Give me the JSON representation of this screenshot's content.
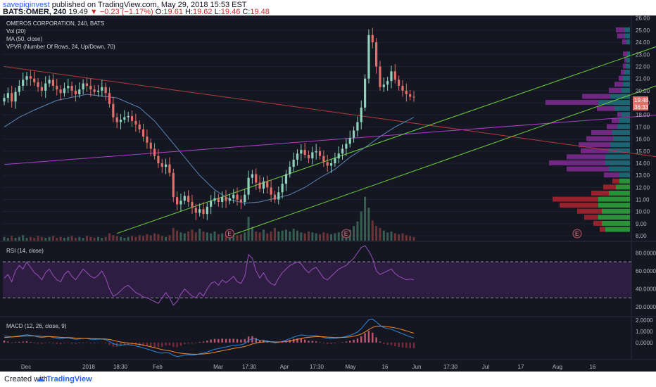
{
  "header": {
    "user": "savepiginvest",
    "published_text": " published on TradingView.com, May 29, 2018 15:53 EST",
    "symbol": "BATS:OMER, 240",
    "last": "19.49",
    "change": "−0.23 (−1.17%)",
    "o_label": "O:",
    "o_value": "19.61",
    "h_label": "H:",
    "h_value": "19.62",
    "l_label": "L:",
    "l_value": "19.46",
    "c_label": "C:",
    "c_value": "19.48"
  },
  "legend": {
    "title": "OMEROS CORPORATION, 240, BATS",
    "vol": "Vol (20)",
    "ma": "MA (50, close)",
    "vpvr": "VPVR (Number Of Rows, 24, Up/Down, 70)",
    "rsi": "RSI (14, close)",
    "macd": "MACD (12, 26, close, 9)"
  },
  "price_labels": {
    "current": "19.48",
    "timer": "36:33"
  },
  "earnings_marker": "E",
  "footer": {
    "created_with": "Created with",
    "brand": "TradingView"
  },
  "colors": {
    "background": "#141722",
    "candle_up": "#8fd1ba",
    "candle_down": "#e0706a",
    "ma": "#5b86b8",
    "rsi": "#9b4fbd",
    "macd": "#2e87d8",
    "signal": "#f28b2c",
    "channel": "#6fcf3a",
    "trend_red": "#b73a3a",
    "trend_purple": "#b13ec7"
  },
  "chart_data": [
    {
      "type": "candlestick",
      "title": "OMEROS CORPORATION, 240, BATS",
      "x_ticks": [
        "Dec",
        "2018",
        "18:30",
        "Feb",
        "Mar",
        "17:30",
        "Apr",
        "17:30",
        "May",
        "16",
        "Jun",
        "17:30",
        "Jul",
        "17",
        "Aug",
        "16"
      ],
      "y_ticks": [
        8.0,
        9.0,
        10.0,
        11.0,
        12.0,
        13.0,
        14.0,
        15.0,
        16.0,
        17.0,
        18.0,
        19.0,
        20.0,
        21.0,
        22.0,
        23.0,
        24.0,
        25.0,
        26.0
      ],
      "ylim": [
        7.6,
        26.1
      ],
      "close": [
        19.4,
        19.8,
        19.1,
        19.9,
        20.4,
        20.9,
        21.2,
        21.0,
        20.7,
        20.3,
        20.0,
        20.6,
        20.9,
        20.4,
        20.1,
        19.8,
        20.2,
        20.4,
        20.0,
        19.7,
        20.1,
        20.6,
        20.4,
        20.1,
        19.9,
        20.0,
        20.3,
        19.8,
        18.9,
        17.8,
        17.4,
        17.6,
        17.8,
        17.9,
        17.5,
        17.2,
        16.8,
        16.2,
        15.7,
        15.2,
        14.6,
        14.0,
        13.7,
        13.9,
        13.2,
        11.2,
        10.6,
        10.9,
        11.3,
        10.8,
        10.3,
        9.9,
        10.2,
        9.8,
        10.4,
        10.9,
        11.1,
        10.8,
        11.2,
        10.9,
        11.1,
        11.4,
        11.0,
        10.8,
        11.4,
        12.8,
        13.1,
        12.4,
        11.9,
        12.5,
        12.0,
        11.4,
        11.0,
        11.6,
        12.3,
        13.1,
        13.7,
        14.3,
        14.8,
        15.1,
        14.7,
        14.4,
        14.9,
        15.0,
        14.6,
        14.1,
        13.8,
        14.0,
        14.4,
        14.8,
        15.2,
        15.6,
        16.1,
        16.7,
        17.4,
        18.6,
        21.0,
        24.6,
        24.0,
        22.0,
        20.3,
        20.5,
        20.8,
        21.6,
        20.9,
        20.4,
        20.0,
        19.7,
        19.5,
        19.48
      ],
      "volume": [
        0.4,
        0.3,
        0.5,
        0.3,
        0.4,
        0.6,
        0.3,
        0.4,
        0.3,
        0.5,
        0.4,
        0.3,
        0.4,
        0.5,
        0.3,
        0.4,
        0.3,
        0.4,
        0.5,
        0.3,
        0.4,
        0.3,
        0.5,
        0.4,
        0.3,
        0.4,
        0.3,
        0.4,
        0.8,
        0.6,
        0.5,
        0.4,
        0.3,
        0.4,
        0.5,
        0.4,
        0.6,
        0.5,
        0.7,
        0.6,
        0.8,
        0.7,
        0.5,
        0.4,
        0.6,
        1.4,
        1.1,
        0.9,
        0.8,
        1.0,
        1.2,
        0.9,
        1.3,
        1.0,
        0.9,
        0.8,
        1.0,
        0.7,
        0.8,
        0.6,
        0.7,
        0.8,
        0.6,
        0.7,
        0.9,
        2.6,
        1.5,
        1.0,
        0.9,
        1.2,
        0.8,
        1.0,
        1.4,
        1.0,
        1.1,
        1.2,
        1.0,
        1.3,
        1.1,
        0.9,
        0.8,
        1.0,
        0.9,
        0.8,
        0.7,
        0.9,
        0.8,
        0.7,
        0.8,
        0.9,
        1.0,
        1.1,
        1.2,
        1.6,
        2.1,
        3.2,
        4.8,
        3.6,
        2.2,
        1.6,
        1.4,
        1.1,
        0.9,
        1.0,
        0.8,
        0.7,
        0.8,
        0.6,
        0.5,
        0.4
      ],
      "ma50_points": [
        [
          0,
          17.0
        ],
        [
          4,
          17.8
        ],
        [
          8,
          18.4
        ],
        [
          14,
          19.2
        ],
        [
          22,
          19.7
        ],
        [
          30,
          19.4
        ],
        [
          36,
          18.6
        ],
        [
          40,
          17.5
        ],
        [
          44,
          16.0
        ],
        [
          48,
          14.5
        ],
        [
          52,
          13.0
        ],
        [
          56,
          11.8
        ],
        [
          60,
          11.0
        ],
        [
          64,
          10.7
        ],
        [
          68,
          10.8
        ],
        [
          72,
          11.1
        ],
        [
          76,
          11.4
        ],
        [
          80,
          12.0
        ],
        [
          84,
          12.8
        ],
        [
          88,
          13.5
        ],
        [
          92,
          14.5
        ],
        [
          96,
          15.3
        ],
        [
          100,
          16.2
        ],
        [
          104,
          17.0
        ],
        [
          109,
          17.8
        ]
      ],
      "earnings_index": [
        60,
        91
      ],
      "vpvr_rows": [
        {
          "price": 8.5,
          "up": 35,
          "down": 8
        },
        {
          "price": 9.0,
          "up": 40,
          "down": 12
        },
        {
          "price": 9.5,
          "up": 45,
          "down": 20
        },
        {
          "price": 10.0,
          "up": 40,
          "down": 35
        },
        {
          "price": 10.5,
          "up": 45,
          "down": 55
        },
        {
          "price": 11.0,
          "up": 45,
          "down": 65
        },
        {
          "price": 11.5,
          "up": 30,
          "down": 25
        },
        {
          "price": 12.0,
          "up": 20,
          "down": 18
        },
        {
          "price": 12.5,
          "up": 15,
          "down": 10
        },
        {
          "price": 13.0,
          "up": 15,
          "down": 22
        },
        {
          "price": 13.5,
          "up": 30,
          "down": 60
        },
        {
          "price": 14.0,
          "up": 35,
          "down": 80
        },
        {
          "price": 14.5,
          "up": 35,
          "down": 55
        },
        {
          "price": 15.0,
          "up": 30,
          "down": 40
        },
        {
          "price": 15.5,
          "up": 28,
          "down": 45
        },
        {
          "price": 16.0,
          "up": 24,
          "down": 38
        },
        {
          "price": 16.5,
          "up": 25,
          "down": 30
        },
        {
          "price": 17.0,
          "up": 18,
          "down": 15
        },
        {
          "price": 17.5,
          "up": 16,
          "down": 10
        },
        {
          "price": 18.0,
          "up": 12,
          "down": 6
        },
        {
          "price": 18.5,
          "up": 22,
          "down": 25
        },
        {
          "price": 19.0,
          "up": 45,
          "down": 75
        },
        {
          "price": 19.5,
          "up": 28,
          "down": 40
        },
        {
          "price": 20.0,
          "up": 12,
          "down": 18
        },
        {
          "price": 20.5,
          "up": 10,
          "down": 12
        },
        {
          "price": 21.0,
          "up": 10,
          "down": 6
        },
        {
          "price": 21.5,
          "up": 8,
          "down": 5
        },
        {
          "price": 22.0,
          "up": 6,
          "down": 4
        },
        {
          "price": 22.5,
          "up": 5,
          "down": 3
        },
        {
          "price": 23.0,
          "up": 4,
          "down": 6
        },
        {
          "price": 24.0,
          "up": 5,
          "down": 6
        },
        {
          "price": 24.5,
          "up": 8,
          "down": 10
        },
        {
          "price": 25.0,
          "up": 8,
          "down": 12
        }
      ],
      "trendlines": [
        {
          "color": "trend_red",
          "from": [
            0,
            22.0
          ],
          "to": [
            200,
            13.4
          ]
        },
        {
          "color": "trend_purple",
          "from": [
            0,
            13.9
          ],
          "to": [
            200,
            18.6
          ]
        },
        {
          "color": "channel",
          "from": [
            30,
            8.2
          ],
          "to": [
            175,
            23.8
          ]
        },
        {
          "color": "channel",
          "from": [
            60,
            8.0
          ],
          "to": [
            200,
            23.3
          ]
        }
      ]
    },
    {
      "type": "line",
      "title": "RSI (14, close)",
      "y_ticks": [
        "80.0000",
        "60.0000",
        "40.0000",
        "20.0000"
      ],
      "ylim": [
        10,
        92
      ],
      "bands": [
        70,
        30
      ],
      "values": [
        52,
        56,
        48,
        60,
        66,
        62,
        70,
        64,
        58,
        55,
        50,
        58,
        62,
        55,
        50,
        48,
        56,
        60,
        54,
        50,
        56,
        62,
        58,
        54,
        52,
        55,
        60,
        52,
        40,
        32,
        34,
        38,
        42,
        44,
        40,
        36,
        34,
        31,
        30,
        28,
        26,
        24,
        30,
        36,
        30,
        22,
        26,
        34,
        40,
        36,
        32,
        30,
        36,
        32,
        40,
        46,
        48,
        44,
        50,
        47,
        50,
        54,
        48,
        46,
        54,
        78,
        74,
        60,
        52,
        58,
        50,
        46,
        44,
        52,
        58,
        62,
        66,
        68,
        70,
        68,
        62,
        58,
        62,
        64,
        58,
        52,
        50,
        54,
        58,
        62,
        64,
        66,
        70,
        74,
        80,
        86,
        88,
        82,
        74,
        60,
        56,
        58,
        60,
        62,
        57,
        54,
        52,
        50,
        51,
        50
      ]
    },
    {
      "type": "line",
      "title": "MACD (12, 26, close, 9)",
      "y_ticks": [
        "2.0000",
        "1.0000",
        "0.0000"
      ],
      "ylim": [
        -1.4,
        2.2
      ],
      "macd": [
        0.6,
        0.55,
        0.5,
        0.55,
        0.6,
        0.65,
        0.7,
        0.65,
        0.6,
        0.5,
        0.45,
        0.5,
        0.55,
        0.45,
        0.4,
        0.35,
        0.4,
        0.42,
        0.35,
        0.3,
        0.32,
        0.38,
        0.35,
        0.3,
        0.28,
        0.3,
        0.32,
        0.25,
        0.1,
        -0.1,
        -0.2,
        -0.22,
        -0.2,
        -0.18,
        -0.25,
        -0.3,
        -0.38,
        -0.48,
        -0.58,
        -0.68,
        -0.8,
        -0.9,
        -0.95,
        -0.9,
        -0.95,
        -1.15,
        -1.25,
        -1.2,
        -1.12,
        -1.1,
        -1.12,
        -1.1,
        -1.0,
        -0.95,
        -0.85,
        -0.72,
        -0.6,
        -0.55,
        -0.45,
        -0.4,
        -0.32,
        -0.25,
        -0.22,
        -0.2,
        -0.1,
        0.2,
        0.35,
        0.3,
        0.2,
        0.22,
        0.15,
        0.05,
        -0.02,
        0.02,
        0.1,
        0.22,
        0.35,
        0.48,
        0.6,
        0.68,
        0.65,
        0.6,
        0.62,
        0.62,
        0.55,
        0.45,
        0.38,
        0.36,
        0.38,
        0.42,
        0.48,
        0.55,
        0.65,
        0.78,
        0.95,
        1.25,
        1.65,
        2.05,
        2.1,
        1.85,
        1.55,
        1.35,
        1.25,
        1.2,
        1.05,
        0.92,
        0.78,
        0.65,
        0.52,
        0.42
      ],
      "signal": [
        0.45,
        0.48,
        0.5,
        0.52,
        0.55,
        0.58,
        0.6,
        0.61,
        0.6,
        0.58,
        0.55,
        0.54,
        0.54,
        0.52,
        0.5,
        0.47,
        0.45,
        0.45,
        0.43,
        0.4,
        0.39,
        0.38,
        0.38,
        0.36,
        0.35,
        0.34,
        0.33,
        0.32,
        0.28,
        0.2,
        0.12,
        0.05,
        0.0,
        -0.04,
        -0.08,
        -0.12,
        -0.17,
        -0.23,
        -0.3,
        -0.38,
        -0.46,
        -0.55,
        -0.63,
        -0.69,
        -0.74,
        -0.82,
        -0.9,
        -0.96,
        -1.0,
        -1.02,
        -1.04,
        -1.05,
        -1.04,
        -1.02,
        -0.99,
        -0.94,
        -0.87,
        -0.81,
        -0.74,
        -0.67,
        -0.6,
        -0.53,
        -0.47,
        -0.42,
        -0.36,
        -0.25,
        -0.13,
        -0.04,
        0.02,
        0.06,
        0.08,
        0.07,
        0.05,
        0.05,
        0.06,
        0.09,
        0.14,
        0.21,
        0.29,
        0.37,
        0.43,
        0.47,
        0.5,
        0.53,
        0.53,
        0.52,
        0.49,
        0.47,
        0.45,
        0.45,
        0.46,
        0.48,
        0.51,
        0.57,
        0.65,
        0.77,
        0.95,
        1.17,
        1.36,
        1.46,
        1.48,
        1.46,
        1.42,
        1.38,
        1.32,
        1.24,
        1.15,
        1.05,
        0.94,
        0.84
      ]
    }
  ]
}
